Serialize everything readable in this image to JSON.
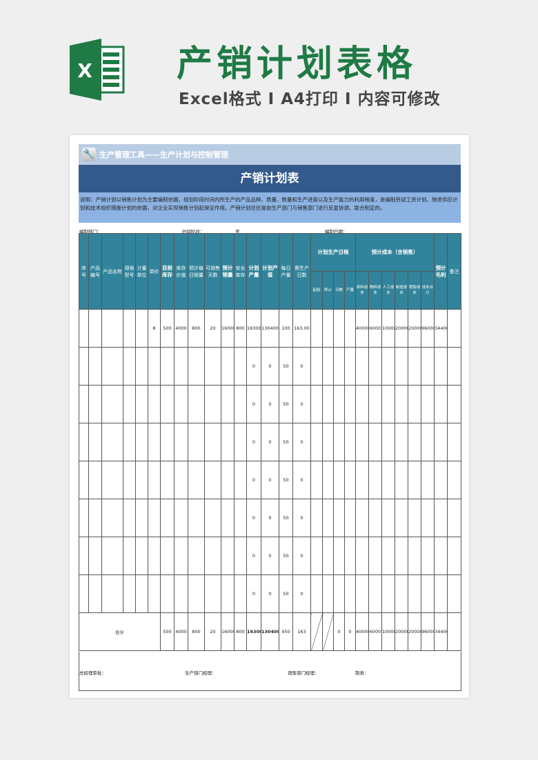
{
  "promo": {
    "logo_letter": "X",
    "title": "产销计划表格",
    "subtitle": "Excel格式 I A4打印 I 内容可修改",
    "brand_color": "#1f7a45"
  },
  "sheet": {
    "toolbar_icon": "wrench-icon",
    "toolbar_text": "生产管理工具——生产计划与控制管理",
    "title": "产销计划表",
    "description": "说明：产销计划以销售计划为主要编制依据，规划阶段时间内所生产的产品品种、质量、数量和生产进度以及生产能力的利用程度，是编制劳动工资计划、物资供应计划和技术组织措施计划的依据，对企业实现销售计划起保证作用。产销计划往往是由生产部门与销售部门进行反复协调、联合制定的。",
    "meta": {
      "dept": "编制部门：",
      "period": "时间阶段：",
      "to": "至",
      "date": "编制日期："
    },
    "header_color": "#31849b",
    "columns": [
      "序号",
      "产品编号",
      "产品名称",
      "规格型号",
      "计量单位",
      "单价",
      "目前库存",
      "库存价值",
      "预计每日销量",
      "可销售天数",
      "预计销量",
      "安全库存",
      "计划产量",
      "计划产值",
      "每日产量",
      "需生产日数"
    ],
    "group_schedule": {
      "label": "计划生产日程",
      "sub": [
        "起始",
        "终止",
        "日数",
        "产量"
      ]
    },
    "group_cost": {
      "label": "预计成本（含销售）",
      "sub": [
        "原料成本",
        "物料成本",
        "人工成本",
        "制造成本",
        "销售成本",
        "成本合计"
      ]
    },
    "col_profit": "预计毛利",
    "col_note": "备注",
    "rows": [
      [
        "",
        "",
        "",
        "",
        "",
        "8",
        "500",
        "4000",
        "800",
        "20",
        "16000",
        "800",
        "16300",
        "130400",
        "100",
        "163.00",
        "",
        "",
        "",
        "",
        "40000",
        "6000",
        "10000",
        "20000",
        "20000",
        "96000",
        "34400",
        ""
      ],
      [
        "",
        "",
        "",
        "",
        "",
        "",
        "",
        "",
        "",
        "",
        "",
        "",
        "0",
        "0",
        "50",
        "0",
        "",
        "",
        "",
        "",
        "",
        "",
        "",
        "",
        "",
        "",
        "",
        ""
      ],
      [
        "",
        "",
        "",
        "",
        "",
        "",
        "",
        "",
        "",
        "",
        "",
        "",
        "0",
        "0",
        "50",
        "0",
        "",
        "",
        "",
        "",
        "",
        "",
        "",
        "",
        "",
        "",
        "",
        ""
      ],
      [
        "",
        "",
        "",
        "",
        "",
        "",
        "",
        "",
        "",
        "",
        "",
        "",
        "0",
        "0",
        "50",
        "0",
        "",
        "",
        "",
        "",
        "",
        "",
        "",
        "",
        "",
        "",
        "",
        ""
      ],
      [
        "",
        "",
        "",
        "",
        "",
        "",
        "",
        "",
        "",
        "",
        "",
        "",
        "0",
        "0",
        "50",
        "0",
        "",
        "",
        "",
        "",
        "",
        "",
        "",
        "",
        "",
        "",
        "",
        ""
      ],
      [
        "",
        "",
        "",
        "",
        "",
        "",
        "",
        "",
        "",
        "",
        "",
        "",
        "0",
        "0",
        "50",
        "0",
        "",
        "",
        "",
        "",
        "",
        "",
        "",
        "",
        "",
        "",
        "",
        ""
      ],
      [
        "",
        "",
        "",
        "",
        "",
        "",
        "",
        "",
        "",
        "",
        "",
        "",
        "0",
        "0",
        "50",
        "0",
        "",
        "",
        "",
        "",
        "",
        "",
        "",
        "",
        "",
        "",
        "",
        ""
      ],
      [
        "",
        "",
        "",
        "",
        "",
        "",
        "",
        "",
        "",
        "",
        "",
        "",
        "0",
        "0",
        "50",
        "0",
        "",
        "",
        "",
        "",
        "",
        "",
        "",
        "",
        "",
        "",
        "",
        ""
      ]
    ],
    "total": {
      "label": "合计",
      "values": [
        "500",
        "4000",
        "800",
        "20",
        "16000",
        "800",
        "16300",
        "130400",
        "450",
        "163"
      ],
      "schedule": [
        "0",
        "0"
      ],
      "cost": [
        "40000",
        "6000",
        "10000",
        "20000",
        "20000",
        "96000"
      ],
      "profit": "34400"
    },
    "footer": {
      "gm": "总经理审批：",
      "prod": "生产部门经理：",
      "sales": "销售部门经理：",
      "maker": "制表："
    }
  }
}
